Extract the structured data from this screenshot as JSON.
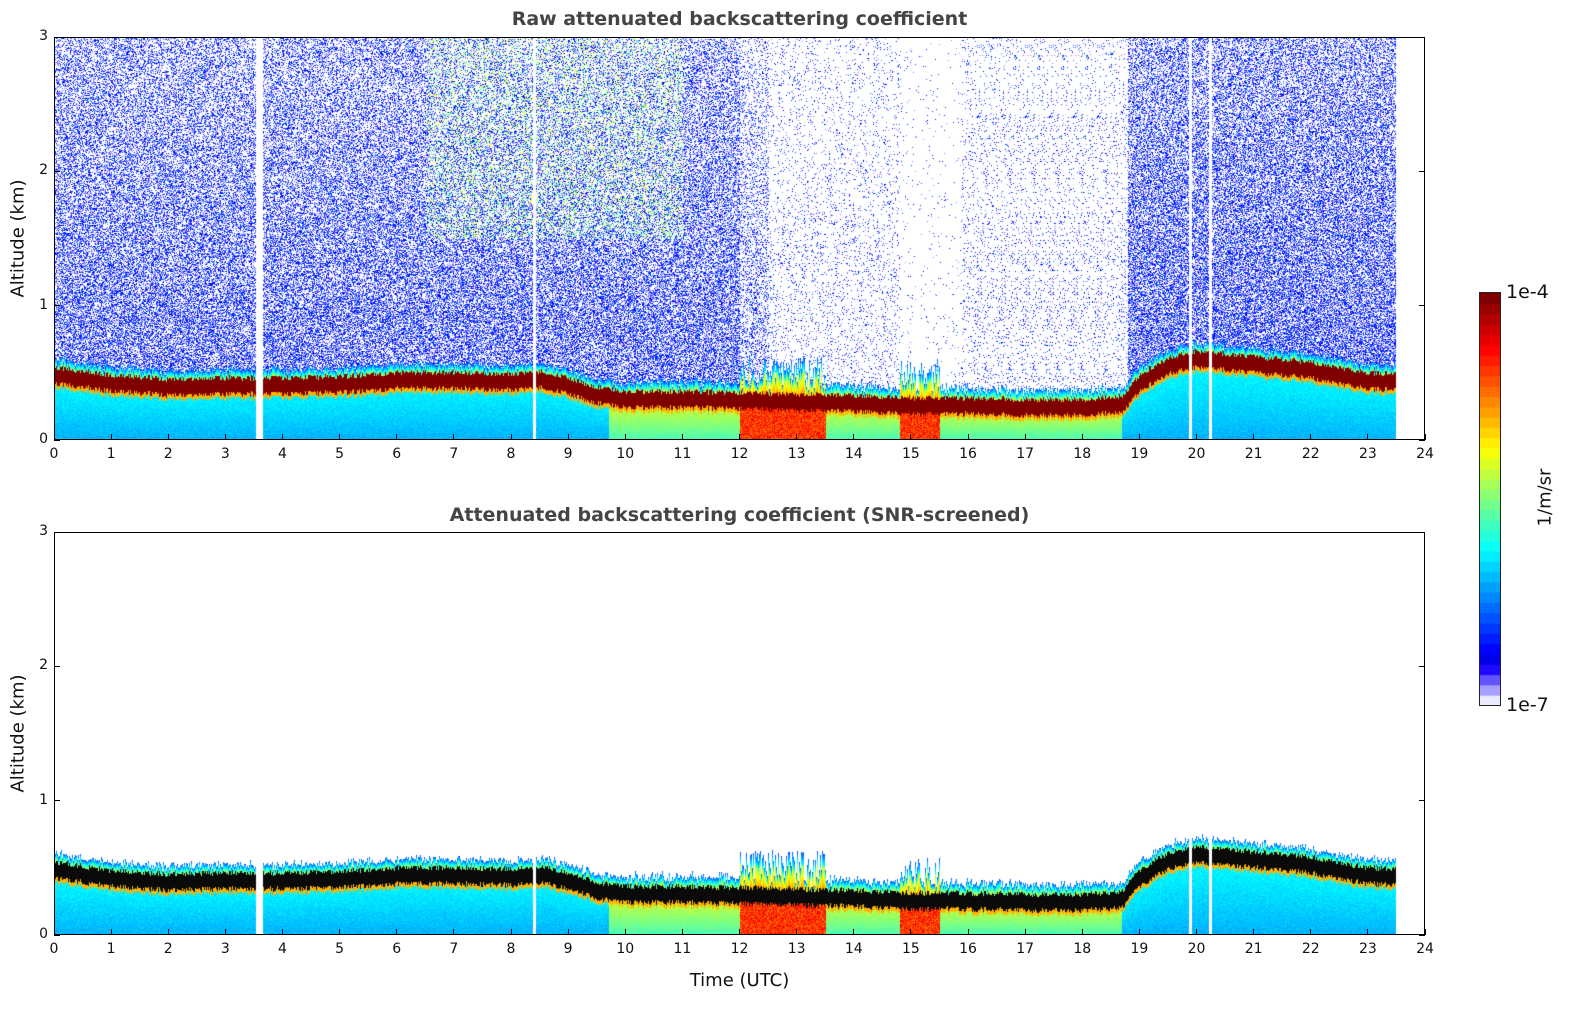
{
  "chart_data": [
    {
      "type": "heatmap",
      "title": "Raw attenuated backscattering coefficient",
      "xlabel": "",
      "ylabel": "Altitude (km)",
      "xlim": [
        0,
        24
      ],
      "ylim": [
        0,
        3
      ],
      "xticks": [
        "0",
        "1",
        "2",
        "3",
        "4",
        "5",
        "6",
        "7",
        "8",
        "9",
        "10",
        "11",
        "12",
        "13",
        "14",
        "15",
        "16",
        "17",
        "18",
        "19",
        "20",
        "21",
        "22",
        "23",
        "24"
      ],
      "yticks": [
        "0",
        "1",
        "2",
        "3"
      ],
      "screened": false
    },
    {
      "type": "heatmap",
      "title": "Attenuated backscattering coefficient (SNR-screened)",
      "xlabel": "Time (UTC)",
      "ylabel": "Altitude (km)",
      "xlim": [
        0,
        24
      ],
      "ylim": [
        0,
        3
      ],
      "xticks": [
        "0",
        "1",
        "2",
        "3",
        "4",
        "5",
        "6",
        "7",
        "8",
        "9",
        "10",
        "11",
        "12",
        "13",
        "14",
        "15",
        "16",
        "17",
        "18",
        "19",
        "20",
        "21",
        "22",
        "23",
        "24"
      ],
      "yticks": [
        "0",
        "1",
        "2",
        "3"
      ],
      "screened": true
    }
  ],
  "layer": {
    "time_h": [
      0,
      1,
      2,
      3,
      4,
      5,
      6,
      7,
      8,
      8.5,
      9,
      9.5,
      10,
      11,
      12,
      13,
      14,
      15,
      16,
      17,
      18,
      18.7,
      19,
      19.5,
      20,
      21,
      22,
      23,
      23.5
    ],
    "band_center_km": [
      0.48,
      0.42,
      0.39,
      0.4,
      0.4,
      0.41,
      0.44,
      0.44,
      0.43,
      0.45,
      0.4,
      0.33,
      0.3,
      0.3,
      0.29,
      0.28,
      0.27,
      0.25,
      0.25,
      0.24,
      0.24,
      0.26,
      0.42,
      0.55,
      0.6,
      0.56,
      0.52,
      0.44,
      0.43
    ],
    "data_end_h": 23.5
  },
  "colorbar": {
    "max_label": "1e-4",
    "min_label": "1e-7",
    "unit_label": "1/m/sr",
    "scale": "log",
    "range": [
      1e-07,
      0.0001
    ],
    "colormap": "jet"
  }
}
